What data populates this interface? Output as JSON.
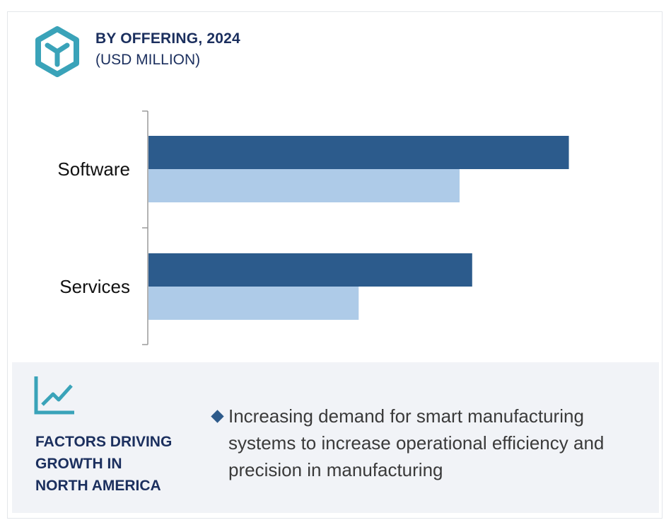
{
  "header": {
    "icon": "hexagon-y-icon",
    "title": "BY OFFERING, 2024",
    "subtitle": "(USD MILLION)"
  },
  "colors": {
    "series_dark": "#2c5b8c",
    "series_light": "#aecbe8",
    "accent_teal": "#3aa3b9",
    "navy_text": "#1b2f5e"
  },
  "chart_data": {
    "type": "bar",
    "orientation": "horizontal",
    "categories": [
      "Software",
      "Services"
    ],
    "series": [
      {
        "values": [
          100,
          77
        ]
      },
      {
        "values": [
          74,
          50
        ]
      }
    ],
    "xlim": [
      0,
      110
    ],
    "grid": false,
    "legend": "none"
  },
  "factors": {
    "icon": "line-chart-icon",
    "title_lines": [
      "FACTORS DRIVING",
      "GROWTH IN",
      "NORTH AMERICA"
    ],
    "bullets": [
      "Increasing demand for smart manufacturing systems to increase operational efficiency and precision in manufacturing"
    ]
  }
}
